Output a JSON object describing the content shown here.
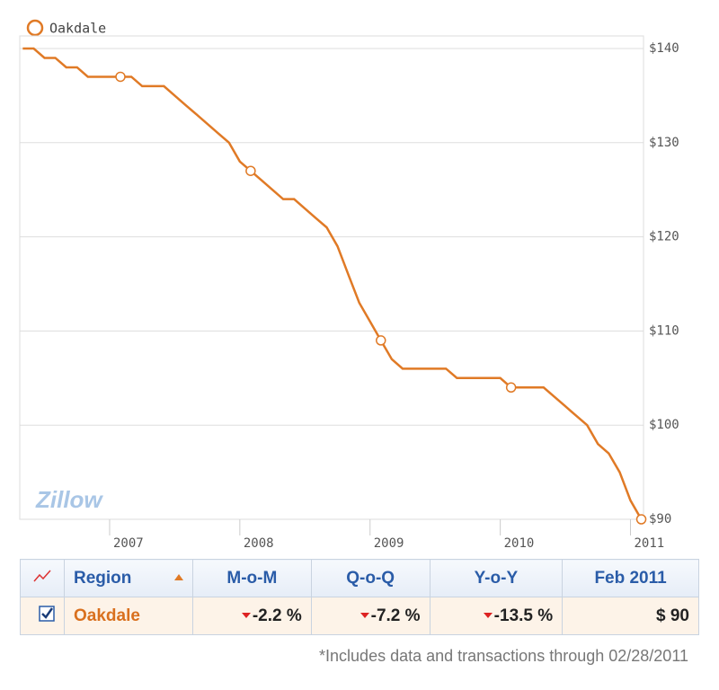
{
  "chart_data": {
    "type": "line",
    "series": [
      {
        "name": "Oakdale",
        "color": "#e07a26",
        "values": [
          140,
          140,
          139,
          139,
          138,
          138,
          137,
          137,
          137,
          137,
          137,
          136,
          136,
          136,
          135,
          134,
          133,
          132,
          131,
          130,
          128,
          127,
          126,
          125,
          124,
          124,
          123,
          122,
          121,
          119,
          116,
          113,
          111,
          109,
          107,
          106,
          106,
          106,
          106,
          106,
          105,
          105,
          105,
          105,
          105,
          104,
          104,
          104,
          104,
          103,
          102,
          101,
          100,
          98,
          97,
          95,
          92,
          90
        ]
      }
    ],
    "x": [
      2006.333,
      2006.417,
      2006.5,
      2006.583,
      2006.667,
      2006.75,
      2006.833,
      2006.917,
      2007,
      2007.083,
      2007.167,
      2007.25,
      2007.333,
      2007.417,
      2007.5,
      2007.583,
      2007.667,
      2007.75,
      2007.833,
      2007.917,
      2008,
      2008.083,
      2008.167,
      2008.25,
      2008.333,
      2008.417,
      2008.5,
      2008.583,
      2008.667,
      2008.75,
      2008.833,
      2008.917,
      2009,
      2009.083,
      2009.167,
      2009.25,
      2009.333,
      2009.417,
      2009.5,
      2009.583,
      2009.667,
      2009.75,
      2009.833,
      2009.917,
      2010,
      2010.083,
      2010.167,
      2010.25,
      2010.333,
      2010.417,
      2010.5,
      2010.583,
      2010.667,
      2010.75,
      2010.833,
      2010.917,
      2011,
      2011.083
    ],
    "xlim": [
      2006.31,
      2011.1
    ],
    "xticks": [
      2007,
      2008,
      2009,
      2010,
      2011
    ],
    "ylim": [
      90,
      140
    ],
    "yticks": [
      {
        "value": 90,
        "label": "$90"
      },
      {
        "value": 100,
        "label": "$100"
      },
      {
        "value": 110,
        "label": "$110"
      },
      {
        "value": 120,
        "label": "$120"
      },
      {
        "value": 130,
        "label": "$130"
      },
      {
        "value": 140,
        "label": "$140"
      }
    ],
    "grid": true,
    "legend": "top-left",
    "watermark": "Zillow"
  },
  "table": {
    "headers": [
      "Region",
      "M-o-M",
      "Q-o-Q",
      "Y-o-Y",
      "Feb 2011"
    ],
    "rows": [
      [
        "Oakdale",
        "-2.2 %",
        "-7.2 %",
        "-13.5 %",
        "$ 90"
      ]
    ]
  },
  "footnote": "*Includes data and transactions through 02/28/2011"
}
